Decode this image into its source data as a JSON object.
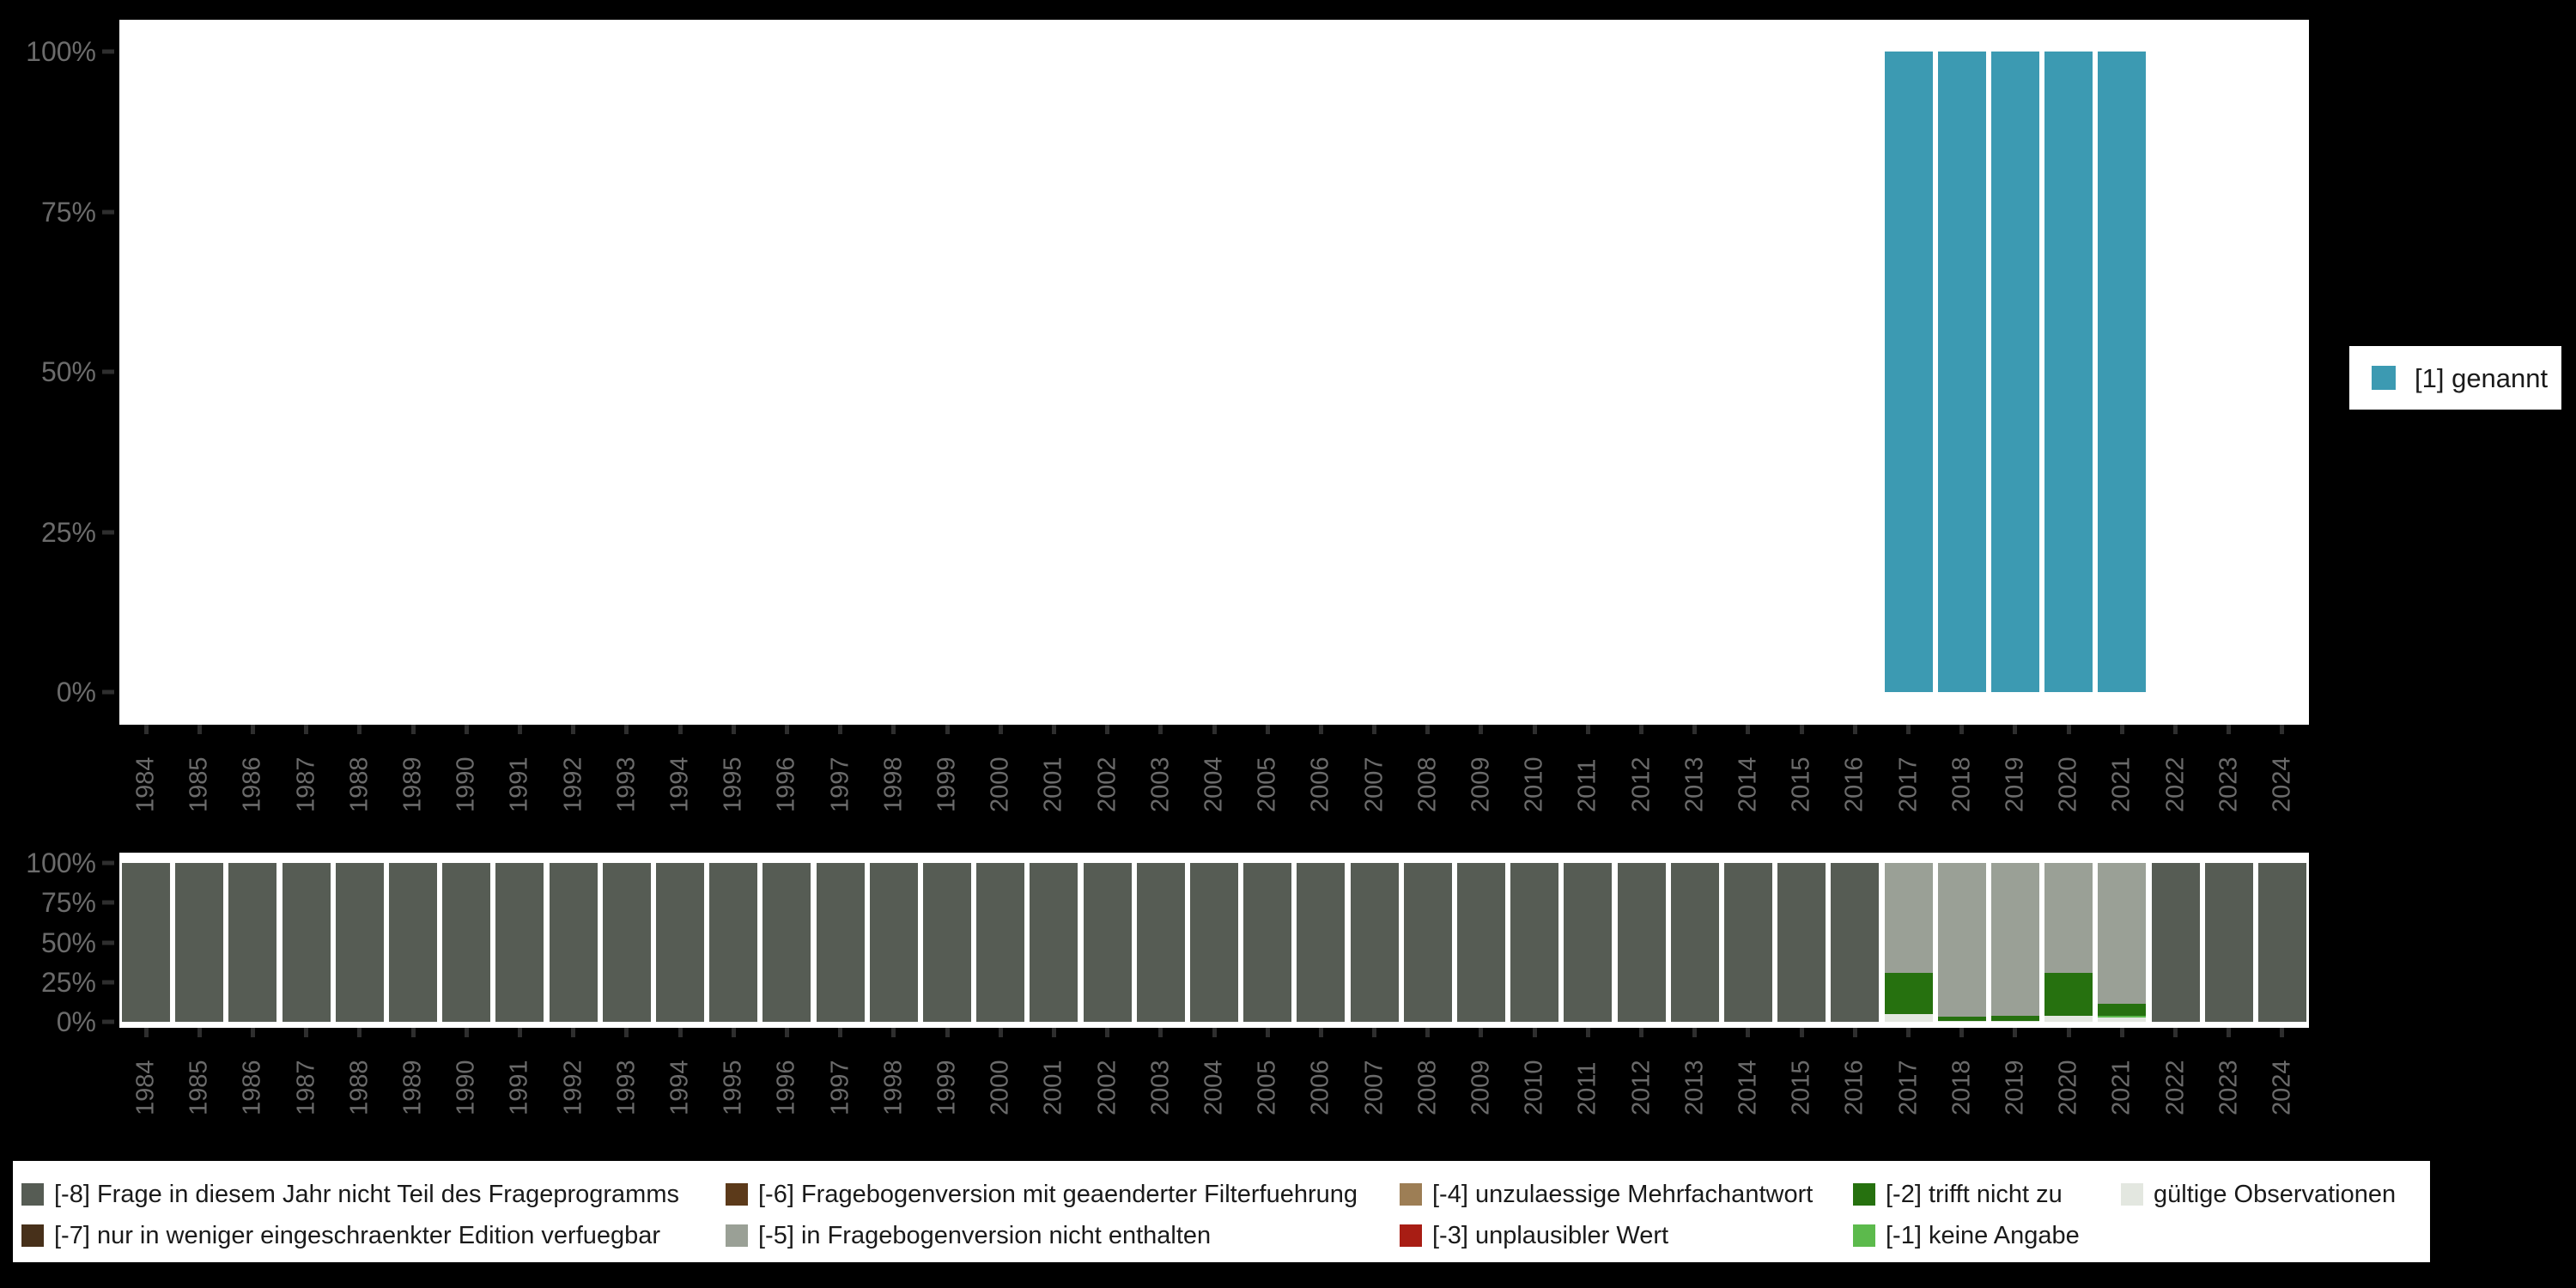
{
  "colors": {
    "background": "#000000",
    "panel": "#FFFFFF",
    "axis_text": "#6B6B6B",
    "tick_mark": "#2E2E2E",
    "legend_text": "#1A1A1A",
    "genannt": "#3C9AB2",
    "miss8": "#565C54",
    "miss7": "#47301A",
    "miss6": "#5C3A1A",
    "miss5": "#9AA096",
    "miss4": "#9D7E55",
    "miss3": "#A81D14",
    "miss2": "#26710F",
    "miss1": "#5CBA4C",
    "valid": "#E3E7E0"
  },
  "top_legend": {
    "items": [
      {
        "label": "[1] genannt",
        "color": "#3C9AB2"
      }
    ]
  },
  "bottom_legend": {
    "items": [
      {
        "label": "[-8] Frage in diesem Jahr nicht Teil des Frageprogramms",
        "color": "#565C54",
        "col": 0,
        "row": 0
      },
      {
        "label": "[-7] nur in weniger eingeschraenkter Edition verfuegbar",
        "color": "#47301A",
        "col": 0,
        "row": 1
      },
      {
        "label": "[-6] Fragebogenversion mit geaenderter Filterfuehrung",
        "color": "#5C3A1A",
        "col": 1,
        "row": 0
      },
      {
        "label": "[-5] in Fragebogenversion nicht enthalten",
        "color": "#9AA096",
        "col": 1,
        "row": 1
      },
      {
        "label": "[-4] unzulaessige Mehrfachantwort",
        "color": "#9D7E55",
        "col": 2,
        "row": 0
      },
      {
        "label": "[-3] unplausibler Wert",
        "color": "#A81D14",
        "col": 2,
        "row": 1
      },
      {
        "label": "[-2] trifft nicht zu",
        "color": "#26710F",
        "col": 3,
        "row": 0
      },
      {
        "label": "[-1] keine Angabe",
        "color": "#5CBA4C",
        "col": 3,
        "row": 1
      },
      {
        "label": "gültige Observationen",
        "color": "#E3E7E0",
        "col": 4,
        "row": 0
      }
    ]
  },
  "chart_data": [
    {
      "type": "bar",
      "stacked": true,
      "percent": true,
      "title": "",
      "xlabel": "",
      "ylabel": "",
      "ylim": [
        0,
        100
      ],
      "ytick_values": [
        0,
        25,
        50,
        75,
        100
      ],
      "ytick_labels": [
        "0%",
        "25%",
        "50%",
        "75%",
        "100%"
      ],
      "legend_position": "right",
      "categories": [
        "1984",
        "1985",
        "1986",
        "1987",
        "1988",
        "1989",
        "1990",
        "1991",
        "1992",
        "1993",
        "1994",
        "1995",
        "1996",
        "1997",
        "1998",
        "1999",
        "2000",
        "2001",
        "2002",
        "2003",
        "2004",
        "2005",
        "2006",
        "2007",
        "2008",
        "2009",
        "2010",
        "2011",
        "2012",
        "2013",
        "2014",
        "2015",
        "2016",
        "2017",
        "2018",
        "2019",
        "2020",
        "2021",
        "2022",
        "2023",
        "2024"
      ],
      "series": [
        {
          "name": "[1] genannt",
          "color": "#3C9AB2",
          "values": [
            0,
            0,
            0,
            0,
            0,
            0,
            0,
            0,
            0,
            0,
            0,
            0,
            0,
            0,
            0,
            0,
            0,
            0,
            0,
            0,
            0,
            0,
            0,
            0,
            0,
            0,
            0,
            0,
            0,
            0,
            0,
            0,
            0,
            100,
            100,
            100,
            100,
            100,
            0,
            0,
            0
          ]
        }
      ]
    },
    {
      "type": "bar",
      "stacked": true,
      "percent": true,
      "title": "",
      "xlabel": "",
      "ylabel": "",
      "ylim": [
        0,
        100
      ],
      "ytick_values": [
        0,
        25,
        50,
        75,
        100
      ],
      "ytick_labels": [
        "0%",
        "25%",
        "50%",
        "75%",
        "100%"
      ],
      "legend_position": "bottom",
      "categories": [
        "1984",
        "1985",
        "1986",
        "1987",
        "1988",
        "1989",
        "1990",
        "1991",
        "1992",
        "1993",
        "1994",
        "1995",
        "1996",
        "1997",
        "1998",
        "1999",
        "2000",
        "2001",
        "2002",
        "2003",
        "2004",
        "2005",
        "2006",
        "2007",
        "2008",
        "2009",
        "2010",
        "2011",
        "2012",
        "2013",
        "2014",
        "2015",
        "2016",
        "2017",
        "2018",
        "2019",
        "2020",
        "2021",
        "2022",
        "2023",
        "2024"
      ],
      "series": [
        {
          "name": "gültige Observationen",
          "color": "#E3E7E0",
          "values": [
            0,
            0,
            0,
            0,
            0,
            0,
            0,
            0,
            0,
            0,
            0,
            0,
            0,
            0,
            0,
            0,
            0,
            0,
            0,
            0,
            0,
            0,
            0,
            0,
            0,
            0,
            0,
            0,
            0,
            0,
            0,
            0,
            0,
            5,
            0.5,
            0.5,
            4,
            2.5,
            0,
            0,
            0
          ]
        },
        {
          "name": "[-1] keine Angabe",
          "color": "#5CBA4C",
          "values": [
            0,
            0,
            0,
            0,
            0,
            0,
            0,
            0,
            0,
            0,
            0,
            0,
            0,
            0,
            0,
            0,
            0,
            0,
            0,
            0,
            0,
            0,
            0,
            0,
            0,
            0,
            0,
            0,
            0,
            0,
            0,
            0,
            0,
            0,
            0,
            0,
            0,
            1.5,
            0,
            0,
            0
          ]
        },
        {
          "name": "[-2] trifft nicht zu",
          "color": "#26710F",
          "values": [
            0,
            0,
            0,
            0,
            0,
            0,
            0,
            0,
            0,
            0,
            0,
            0,
            0,
            0,
            0,
            0,
            0,
            0,
            0,
            0,
            0,
            0,
            0,
            0,
            0,
            0,
            0,
            0,
            0,
            0,
            0,
            0,
            0,
            26,
            3,
            3.5,
            27,
            7.5,
            0,
            0,
            0
          ]
        },
        {
          "name": "[-5] in Fragebogenversion nicht enthalten",
          "color": "#9AA096",
          "values": [
            0,
            0,
            0,
            0,
            0,
            0,
            0,
            0,
            0,
            0,
            0,
            0,
            0,
            0,
            0,
            0,
            0,
            0,
            0,
            0,
            0,
            0,
            0,
            0,
            0,
            0,
            0,
            0,
            0,
            0,
            0,
            0,
            0,
            69,
            96.5,
            96,
            69,
            88.5,
            0,
            0,
            0
          ]
        },
        {
          "name": "[-8] Frage in diesem Jahr nicht Teil des Frageprogramms",
          "color": "#565C54",
          "values": [
            100,
            100,
            100,
            100,
            100,
            100,
            100,
            100,
            100,
            100,
            100,
            100,
            100,
            100,
            100,
            100,
            100,
            100,
            100,
            100,
            100,
            100,
            100,
            100,
            100,
            100,
            100,
            100,
            100,
            100,
            100,
            100,
            100,
            0,
            0,
            0,
            0,
            0,
            100,
            100,
            100
          ]
        }
      ]
    }
  ]
}
